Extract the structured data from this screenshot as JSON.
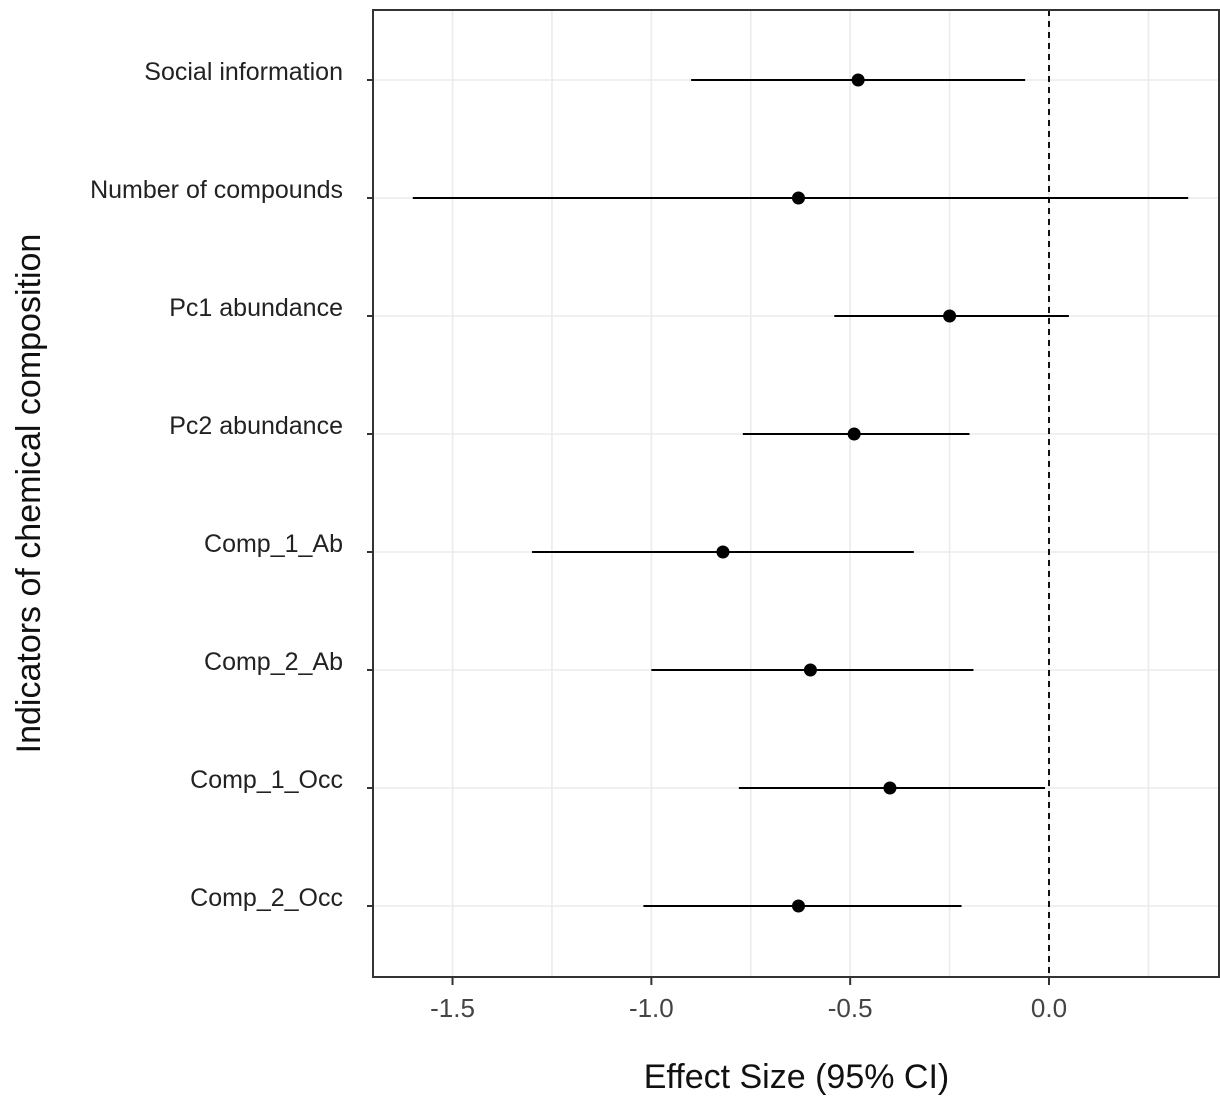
{
  "chart_data": {
    "type": "forest",
    "title": "",
    "xlabel": "Effect Size (95% CI)",
    "ylabel": "Indicators of chemical composition",
    "xlim": [
      -1.7,
      0.43
    ],
    "xticks": [
      -1.5,
      -1.0,
      -0.5,
      0.0
    ],
    "xtick_labels": [
      "-1.5",
      "-1.0",
      "-0.5",
      "0.0"
    ],
    "reference_line": 0.0,
    "grid": true,
    "categories": [
      "Social information",
      "Number of compounds",
      "Pc1 abundance",
      "Pc2 abundance",
      "Comp_1_Ab",
      "Comp_2_Ab",
      "Comp_1_Occ",
      "Comp_2_Occ"
    ],
    "estimates": [
      -0.48,
      -0.63,
      -0.25,
      -0.49,
      -0.82,
      -0.6,
      -0.4,
      -0.63
    ],
    "ci_lower": [
      -0.9,
      -1.6,
      -0.54,
      -0.77,
      -1.3,
      -1.0,
      -0.78,
      -1.02
    ],
    "ci_upper": [
      -0.06,
      0.35,
      0.05,
      -0.2,
      -0.34,
      -0.19,
      -0.01,
      -0.22
    ]
  }
}
